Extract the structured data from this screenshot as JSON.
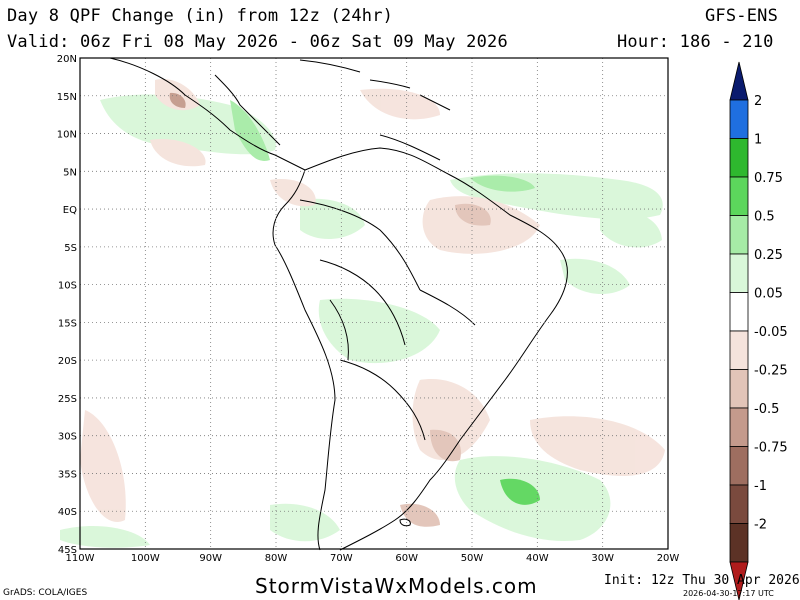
{
  "header": {
    "title": "Day 8 QPF Change (in) from 12z (24hr)",
    "model": "GFS-ENS",
    "valid": "Valid: 06z Fri 08 May 2026 - 06z Sat 09 May 2026",
    "hour": "Hour: 186 - 210"
  },
  "map": {
    "lat_labels": [
      "20N",
      "15N",
      "10N",
      "5N",
      "EQ",
      "5S",
      "10S",
      "15S",
      "20S",
      "25S",
      "30S",
      "35S",
      "40S",
      "45S"
    ],
    "lon_labels": [
      "110W",
      "100W",
      "90W",
      "80W",
      "70W",
      "60W",
      "50W",
      "40W",
      "30W",
      "20W"
    ],
    "grid": true,
    "extent": {
      "lon_min": -110,
      "lon_max": -20,
      "lat_min": -45,
      "lat_max": 20
    }
  },
  "colorbar": {
    "labels": [
      "2",
      "1",
      "0.75",
      "0.5",
      "0.25",
      "0.05",
      "-0.05",
      "-0.25",
      "-0.5",
      "-0.75",
      "-1",
      "-2"
    ],
    "colors": [
      "#0a1b6e",
      "#1f6fe0",
      "#2eb82e",
      "#5cd65c",
      "#a6eba6",
      "#d9f7d9",
      "#ffffff",
      "#f5e3dc",
      "#e2c4b8",
      "#c49a8c",
      "#9e6e60",
      "#7a4a3e",
      "#5c3226",
      "#b01c1c"
    ]
  },
  "footer": {
    "site": "StormVistaWxModels.com",
    "init": "Init: 12z Thu 30 Apr 2026",
    "grads": "GrADS: COLA/IGES",
    "stamp": "2026-04-30-17:17 UTC"
  }
}
